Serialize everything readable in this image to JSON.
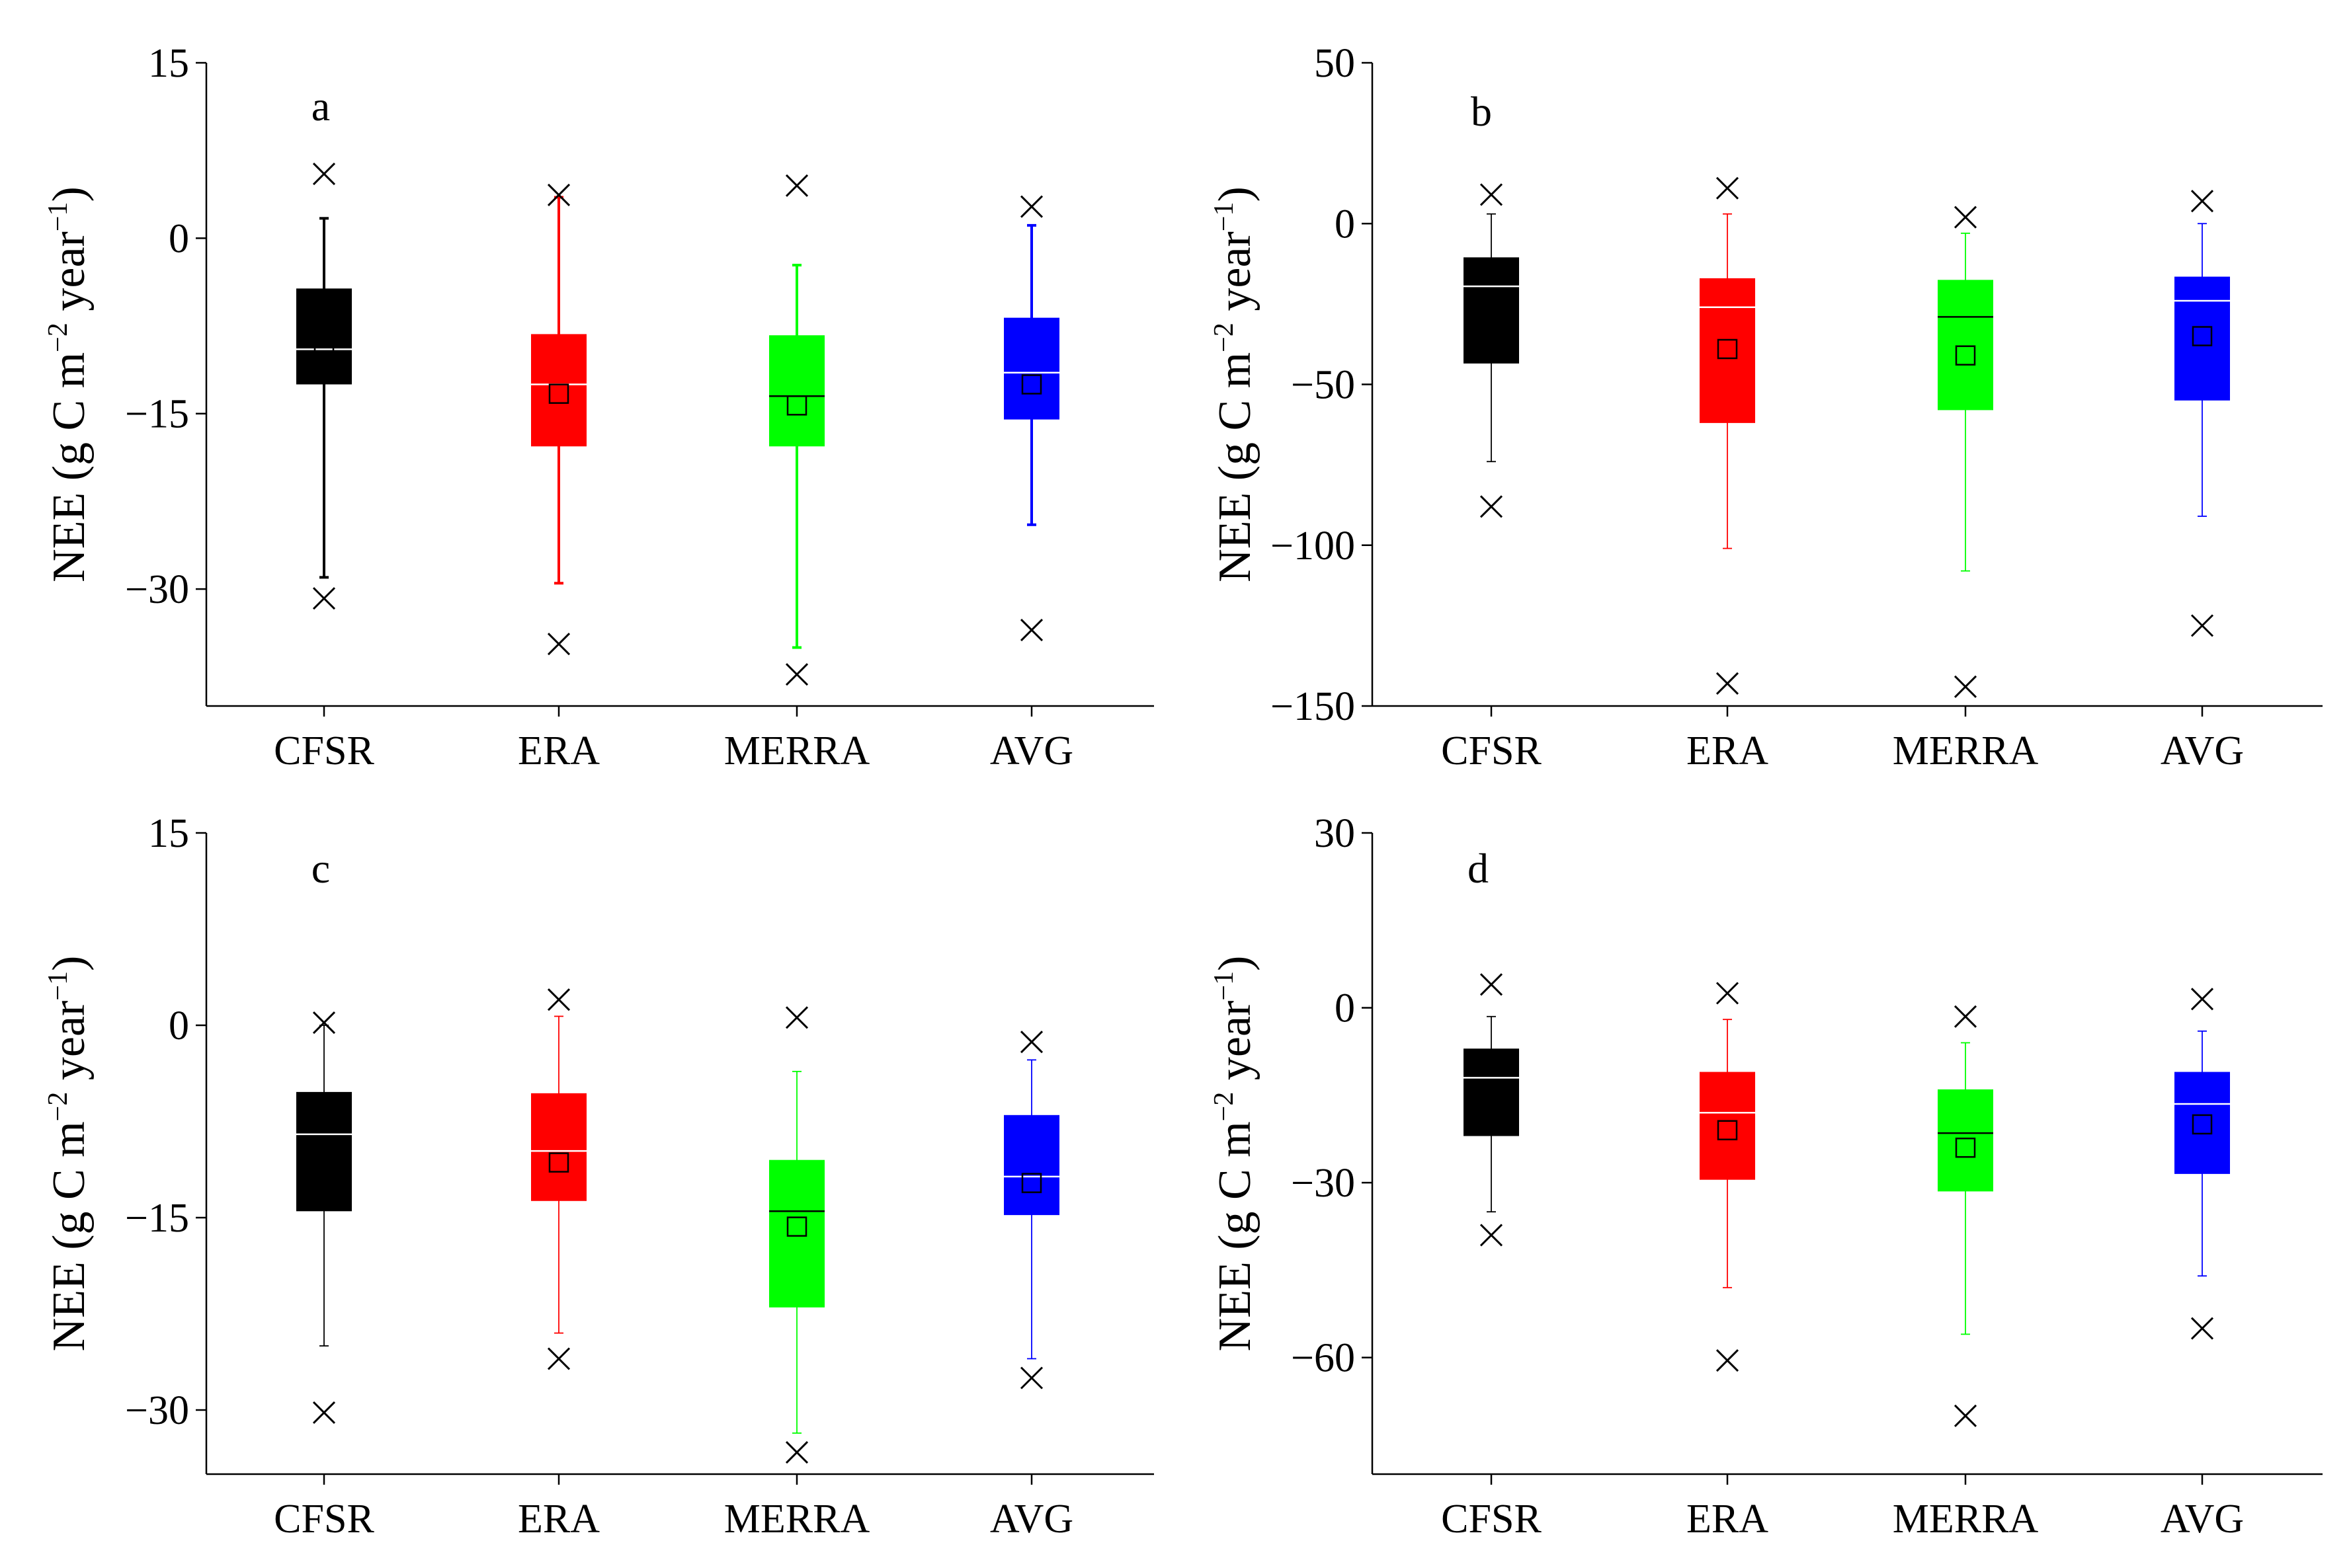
{
  "figure": {
    "categories": [
      "CFSR",
      "ERA",
      "MERRA",
      "AVG"
    ],
    "colors": {
      "CFSR": "#000000",
      "ERA": "#ff0000",
      "MERRA": "#00ff00",
      "AVG": "#0000ff"
    }
  },
  "chart_data": [
    {
      "type": "boxplot",
      "panel": "a",
      "ylabel": {
        "main": "NEE (g C m",
        "exp1": "−2",
        "mid": " year",
        "exp2": "−1",
        "end": ")"
      },
      "ylim": [
        -40,
        15
      ],
      "yticks": [
        15,
        0,
        -15,
        -30
      ],
      "ytick_labels": [
        "15",
        "0",
        "−15",
        "−30"
      ],
      "boxes": [
        {
          "category": "CFSR",
          "whisker_low": -29,
          "q1": -12.5,
          "median": -9.5,
          "q3": -4.3,
          "whisker_high": 1.7,
          "mean": -9.5,
          "outlier_high": 5.5,
          "outlier_low": -30.8
        },
        {
          "category": "ERA",
          "whisker_low": -29.5,
          "q1": -17.8,
          "median": -12.5,
          "q3": -8.2,
          "whisker_high": 3.5,
          "mean": -13.3,
          "outlier_high": 3.7,
          "outlier_low": -34.7
        },
        {
          "category": "MERRA",
          "whisker_low": -35,
          "q1": -17.8,
          "median": -13.5,
          "q3": -8.3,
          "whisker_high": -2.3,
          "mean": -14.3,
          "outlier_high": 4.5,
          "outlier_low": -37.3
        },
        {
          "category": "AVG",
          "whisker_low": -24.5,
          "q1": -15.5,
          "median": -11.5,
          "q3": -6.8,
          "whisker_high": 1.1,
          "mean": -12.5,
          "outlier_high": 2.7,
          "outlier_low": -33.5
        }
      ]
    },
    {
      "type": "boxplot",
      "panel": "b",
      "ylabel": {
        "main": "NEE (g C m",
        "exp1": "−2",
        "mid": " year",
        "exp2": "−1",
        "end": ")"
      },
      "ylim": [
        -150,
        50
      ],
      "yticks": [
        50,
        0,
        -50,
        -100,
        -150
      ],
      "ytick_labels": [
        "50",
        "0",
        "−50",
        "−100",
        "−150"
      ],
      "boxes": [
        {
          "category": "CFSR",
          "whisker_low": -74,
          "q1": -43.5,
          "median": -19.5,
          "q3": -10.5,
          "whisker_high": 3,
          "mean": -25,
          "outlier_high": 9,
          "outlier_low": -88
        },
        {
          "category": "ERA",
          "whisker_low": -101,
          "q1": -62,
          "median": -26,
          "q3": -17,
          "whisker_high": 3,
          "mean": -39,
          "outlier_high": 11,
          "outlier_low": -143
        },
        {
          "category": "MERRA",
          "whisker_low": -108,
          "q1": -58,
          "median": -29,
          "q3": -17.5,
          "whisker_high": -3,
          "mean": -41,
          "outlier_high": 2,
          "outlier_low": -144
        },
        {
          "category": "AVG",
          "whisker_low": -91,
          "q1": -55,
          "median": -24,
          "q3": -16.5,
          "whisker_high": 0,
          "mean": -35,
          "outlier_high": 7,
          "outlier_low": -125
        }
      ]
    },
    {
      "type": "boxplot",
      "panel": "c",
      "ylabel": {
        "main": "NEE (g C m",
        "exp1": "−2",
        "mid": " year",
        "exp2": "−1",
        "end": ")"
      },
      "ylim": [
        -35,
        15
      ],
      "yticks": [
        15,
        0,
        -15,
        -30
      ],
      "ytick_labels": [
        "15",
        "0",
        "−15",
        "−30"
      ],
      "boxes": [
        {
          "category": "CFSR",
          "whisker_low": -25,
          "q1": -14.5,
          "median": -8.5,
          "q3": -5.2,
          "whisker_high": 0,
          "mean": -9.5,
          "outlier_high": 0.2,
          "outlier_low": -30.2
        },
        {
          "category": "ERA",
          "whisker_low": -24,
          "q1": -13.7,
          "median": -9.8,
          "q3": -5.3,
          "whisker_high": 0.7,
          "mean": -10.7,
          "outlier_high": 2,
          "outlier_low": -26
        },
        {
          "category": "MERRA",
          "whisker_low": -31.8,
          "q1": -22,
          "median": -14.5,
          "q3": -10.5,
          "whisker_high": -3.6,
          "mean": -15.7,
          "outlier_high": 0.6,
          "outlier_low": -33.3
        },
        {
          "category": "AVG",
          "whisker_low": -26,
          "q1": -14.8,
          "median": -11.8,
          "q3": -7,
          "whisker_high": -2.7,
          "mean": -12.3,
          "outlier_high": -1.3,
          "outlier_low": -27.5
        }
      ]
    },
    {
      "type": "boxplot",
      "panel": "d",
      "ylabel": {
        "main": "NEE (g C m",
        "exp1": "−2",
        "mid": " year",
        "exp2": "−1",
        "end": ")"
      },
      "ylim": [
        -80,
        30
      ],
      "yticks": [
        30,
        0,
        -30,
        -60
      ],
      "ytick_labels": [
        "30",
        "0",
        "−30",
        "−60"
      ],
      "boxes": [
        {
          "category": "CFSR",
          "whisker_low": -35,
          "q1": -22,
          "median": -12,
          "q3": -7,
          "whisker_high": -1.5,
          "mean": -14,
          "outlier_high": 4,
          "outlier_low": -39
        },
        {
          "category": "ERA",
          "whisker_low": -48,
          "q1": -29.5,
          "median": -18,
          "q3": -11,
          "whisker_high": -2,
          "mean": -21,
          "outlier_high": 2.5,
          "outlier_low": -60.5
        },
        {
          "category": "MERRA",
          "whisker_low": -56,
          "q1": -31.5,
          "median": -21.5,
          "q3": -14,
          "whisker_high": -6,
          "mean": -24,
          "outlier_high": -1.5,
          "outlier_low": -70
        },
        {
          "category": "AVG",
          "whisker_low": -46,
          "q1": -28.5,
          "median": -16.5,
          "q3": -11,
          "whisker_high": -4,
          "mean": -20,
          "outlier_high": 1.5,
          "outlier_low": -55
        }
      ]
    }
  ]
}
